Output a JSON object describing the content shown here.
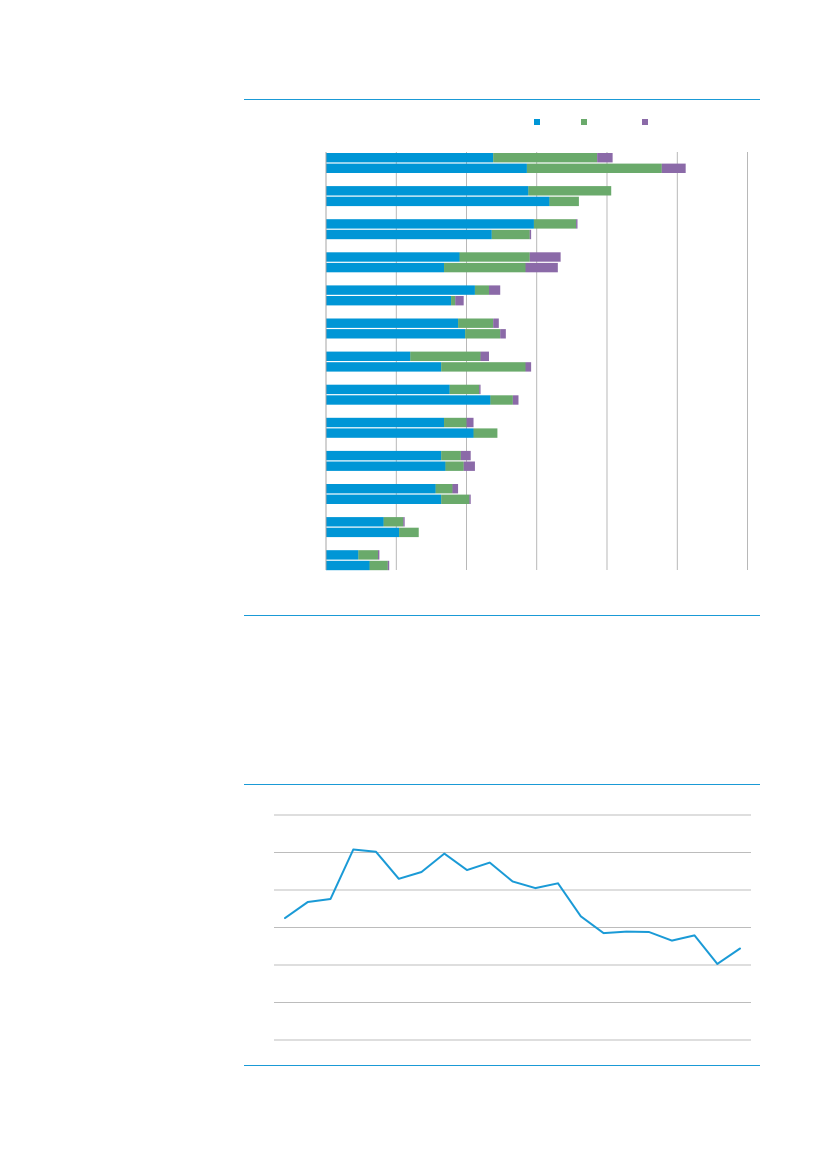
{
  "colors": {
    "rule": "#1a9ad6",
    "series": [
      "#0096d6",
      "#6aaa6b",
      "#8b6aa8"
    ],
    "gridline": "#a6a6a6",
    "line": "#1a9ad6"
  },
  "chart_data": [
    {
      "type": "bar",
      "orientation": "horizontal",
      "stacked": true,
      "title": "",
      "xlabel": "",
      "ylabel": "",
      "xlim": [
        0,
        30
      ],
      "x_gridlines": [
        0,
        5,
        10,
        15,
        20,
        25,
        30
      ],
      "legend_placement": "top-right",
      "categories": [
        "",
        "",
        "",
        "",
        "",
        "",
        "",
        "",
        "",
        "",
        "",
        "",
        ""
      ],
      "bars_per_category": 2,
      "series": [
        {
          "values": [
            [
              11.9,
              14.3
            ],
            [
              14.4,
              15.9
            ],
            [
              14.8,
              11.8
            ],
            [
              9.5,
              8.4
            ],
            [
              10.6,
              8.9
            ],
            [
              9.4,
              9.9
            ],
            [
              6.0,
              8.2
            ],
            [
              8.8,
              11.7
            ],
            [
              8.4,
              10.5
            ],
            [
              8.2,
              8.5
            ],
            [
              7.8,
              8.2
            ],
            [
              4.1,
              5.2
            ],
            [
              2.3,
              3.1
            ]
          ]
        },
        {
          "values": [
            [
              7.4,
              9.6
            ],
            [
              5.9,
              2.1
            ],
            [
              3.0,
              2.7
            ],
            [
              5.0,
              5.8
            ],
            [
              1.0,
              0.3
            ],
            [
              2.5,
              2.5
            ],
            [
              5.0,
              6.0
            ],
            [
              2.1,
              1.6
            ],
            [
              1.6,
              1.7
            ],
            [
              1.4,
              1.3
            ],
            [
              1.2,
              2.0
            ],
            [
              1.4,
              1.4
            ],
            [
              1.4,
              1.3
            ]
          ]
        },
        {
          "values": [
            [
              1.1,
              1.7
            ],
            [
              0.0,
              0.0
            ],
            [
              0.1,
              0.1
            ],
            [
              2.2,
              2.3
            ],
            [
              0.8,
              0.6
            ],
            [
              0.4,
              0.4
            ],
            [
              0.6,
              0.4
            ],
            [
              0.1,
              0.4
            ],
            [
              0.5,
              0.0
            ],
            [
              0.7,
              0.8
            ],
            [
              0.4,
              0.1
            ],
            [
              0.1,
              0.0
            ],
            [
              0.1,
              0.1
            ]
          ]
        }
      ]
    },
    {
      "type": "line",
      "title": "",
      "xlabel": "",
      "ylabel": "",
      "ylim": [
        0,
        6
      ],
      "y_gridlines": [
        0,
        1,
        2,
        3,
        4,
        5,
        6
      ],
      "x": [
        1,
        2,
        3,
        4,
        5,
        6,
        7,
        8,
        9,
        10,
        11,
        12,
        13,
        14,
        15,
        16,
        17,
        18,
        19,
        20,
        21
      ],
      "series": [
        {
          "values": [
            3.25,
            3.68,
            3.76,
            5.08,
            5.02,
            4.3,
            4.48,
            4.97,
            4.53,
            4.73,
            4.23,
            4.05,
            4.18,
            3.3,
            2.85,
            2.89,
            2.88,
            2.65,
            2.79,
            2.03,
            2.44
          ]
        }
      ]
    }
  ]
}
